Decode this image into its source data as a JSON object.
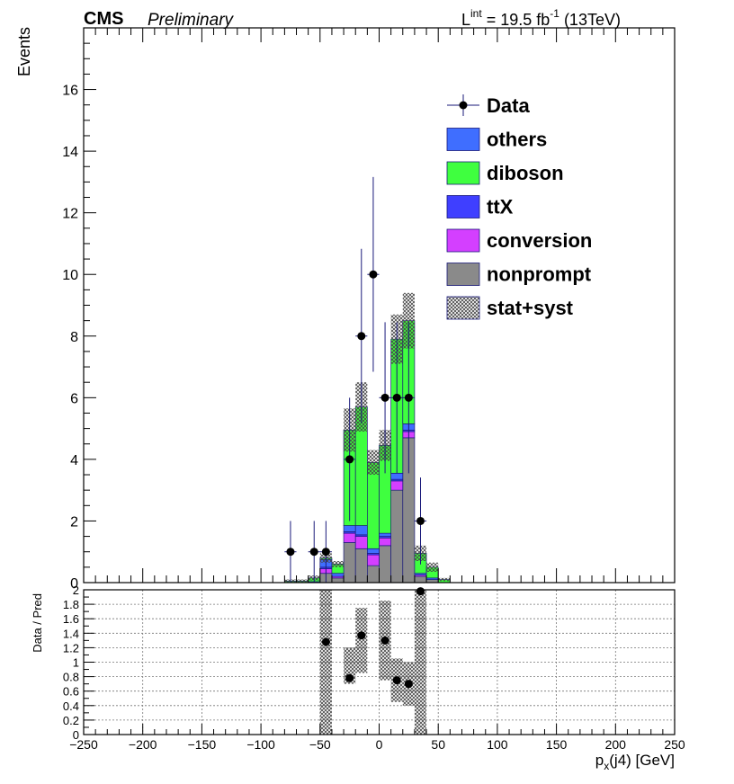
{
  "header": {
    "experiment": "CMS",
    "status": "Preliminary",
    "lumi_prefix": "L",
    "lumi_sup": "int",
    "lumi_value": " = 19.5 fb",
    "lumi_exp": "-1",
    "energy": " (13TeV)"
  },
  "legend": {
    "placement": "top-right",
    "entries": [
      {
        "key": "data",
        "label": "Data",
        "style": "marker",
        "color": "#000000"
      },
      {
        "key": "others",
        "label": "others",
        "style": "fill",
        "color": "#3f6eff"
      },
      {
        "key": "diboson",
        "label": "diboson",
        "style": "fill",
        "color": "#3fff3f"
      },
      {
        "key": "ttX",
        "label": "ttX",
        "style": "fill",
        "color": "#3f3fff"
      },
      {
        "key": "conversion",
        "label": "conversion",
        "style": "fill",
        "color": "#d43fff"
      },
      {
        "key": "nonprompt",
        "label": "nonprompt",
        "style": "fill",
        "color": "#8a8a8a"
      },
      {
        "key": "unc",
        "label": "stat+syst",
        "style": "hatch",
        "color": "#555555"
      }
    ]
  },
  "chart_data": {
    "type": "bar",
    "stacked": true,
    "xlabel": "p_x(j4) [GeV]",
    "ylabel": "Events",
    "ratio_ylabel": "Data / Pred",
    "xlim": [
      -250,
      250
    ],
    "ylim": [
      0,
      18
    ],
    "ratio_ylim": [
      0,
      2
    ],
    "bin_width": 10,
    "x": [
      -75,
      -65,
      -55,
      -45,
      -35,
      -25,
      -15,
      -5,
      5,
      15,
      25,
      35,
      45,
      55
    ],
    "series": [
      {
        "name": "nonprompt",
        "color": "#8a8a8a",
        "values": [
          0,
          0,
          0,
          0.3,
          0.15,
          1.3,
          1.1,
          0.55,
          1.2,
          3.0,
          4.7,
          0.2,
          0.1,
          0
        ]
      },
      {
        "name": "conversion",
        "color": "#d43fff",
        "values": [
          0,
          0,
          0,
          0.15,
          0.05,
          0.3,
          0.4,
          0.35,
          0.25,
          0.3,
          0.2,
          0.05,
          0,
          0
        ]
      },
      {
        "name": "ttX",
        "color": "#3f3fff",
        "values": [
          0,
          0,
          0,
          0.05,
          0,
          0.05,
          0.05,
          0.05,
          0.05,
          0.05,
          0.05,
          0,
          0,
          0
        ]
      },
      {
        "name": "others",
        "color": "#3f6eff",
        "values": [
          0,
          0,
          0.03,
          0.25,
          0.1,
          0.2,
          0.3,
          0.15,
          0.1,
          0.2,
          0.2,
          0.05,
          0.05,
          0
        ]
      },
      {
        "name": "diboson",
        "color": "#3fff3f",
        "values": [
          0.05,
          0.05,
          0.12,
          0.05,
          0.3,
          3.1,
          3.85,
          2.8,
          2.85,
          4.35,
          3.35,
          0.65,
          0.35,
          0.1
        ]
      }
    ],
    "uncertainty": [
      0.05,
      0.05,
      0.08,
      0.15,
      0.1,
      0.7,
      0.8,
      0.4,
      0.5,
      0.8,
      0.9,
      0.25,
      0.15,
      0.05
    ],
    "data_points": [
      {
        "x": -75,
        "y": 1,
        "err": 1.0
      },
      {
        "x": -55,
        "y": 1,
        "err": 1.0
      },
      {
        "x": -45,
        "y": 1,
        "err": 1.0
      },
      {
        "x": -25,
        "y": 4,
        "err": 2.0
      },
      {
        "x": -15,
        "y": 8,
        "err": 2.83
      },
      {
        "x": -5,
        "y": 10,
        "err": 3.16
      },
      {
        "x": 5,
        "y": 6,
        "err": 2.45
      },
      {
        "x": 15,
        "y": 6,
        "err": 2.45
      },
      {
        "x": 25,
        "y": 6,
        "err": 2.45
      },
      {
        "x": 35,
        "y": 2,
        "err": 1.41
      }
    ],
    "ratio_points": [
      {
        "x": -45,
        "y": 1.28
      },
      {
        "x": -25,
        "y": 0.78
      },
      {
        "x": -15,
        "y": 1.37
      },
      {
        "x": 5,
        "y": 1.3
      },
      {
        "x": 15,
        "y": 0.75
      },
      {
        "x": 25,
        "y": 0.7
      },
      {
        "x": 35,
        "y": 1.98
      }
    ],
    "ratio_band": [
      {
        "lo": -50,
        "hi": -40,
        "low": 0.0,
        "high": 2.0
      },
      {
        "lo": -30,
        "hi": -20,
        "low": 0.7,
        "high": 1.2
      },
      {
        "lo": -20,
        "hi": -10,
        "low": 0.85,
        "high": 1.75
      },
      {
        "lo": 0,
        "hi": 10,
        "low": 0.75,
        "high": 1.85
      },
      {
        "lo": 10,
        "hi": 20,
        "low": 0.45,
        "high": 1.05
      },
      {
        "lo": 20,
        "hi": 30,
        "low": 0.4,
        "high": 1.0
      },
      {
        "lo": 30,
        "hi": 40,
        "low": 0.0,
        "high": 2.0
      }
    ],
    "xticks": [
      -250,
      -200,
      -150,
      -100,
      -50,
      0,
      50,
      100,
      150,
      200,
      250
    ],
    "yticks": [
      0,
      2,
      4,
      6,
      8,
      10,
      12,
      14,
      16
    ],
    "ratio_yticks": [
      0,
      0.2,
      0.4,
      0.6,
      0.8,
      1,
      1.2,
      1.4,
      1.6,
      1.8,
      2
    ],
    "grid_ratio": true
  }
}
